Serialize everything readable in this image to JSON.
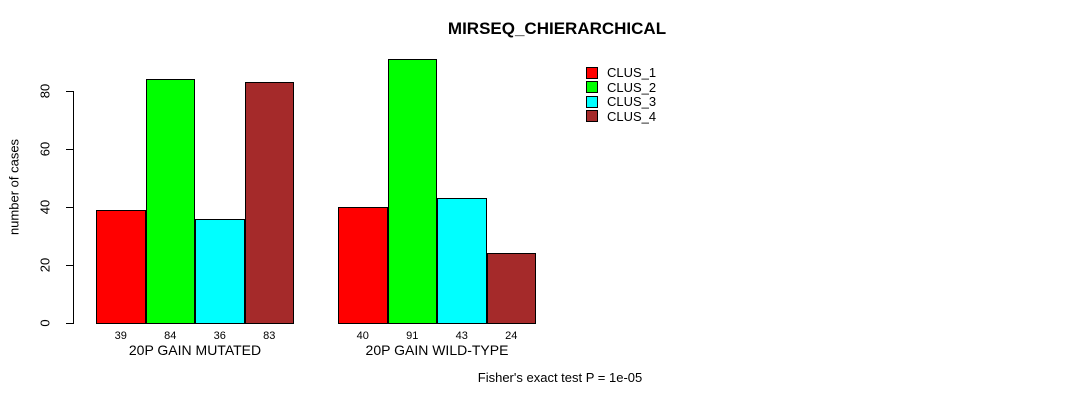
{
  "title": "MIRSEQ_CHIERARCHICAL",
  "chart_data": {
    "type": "bar",
    "title": "MIRSEQ_CHIERARCHICAL",
    "xlabel": "",
    "ylabel": "number of cases",
    "categories": [
      "20P GAIN MUTATED",
      "20P GAIN WILD-TYPE"
    ],
    "series": [
      {
        "name": "CLUS_1",
        "color": "#ff0000",
        "values": [
          39,
          40
        ]
      },
      {
        "name": "CLUS_2",
        "color": "#00ff00",
        "values": [
          84,
          91
        ]
      },
      {
        "name": "CLUS_3",
        "color": "#00ffff",
        "values": [
          36,
          43
        ]
      },
      {
        "name": "CLUS_4",
        "color": "#a52a2a",
        "values": [
          83,
          24
        ]
      }
    ],
    "bar_value_labels": [
      [
        "39",
        "84",
        "36",
        "83"
      ],
      [
        "40",
        "91",
        "43",
        "24"
      ]
    ],
    "yticks": [
      "0",
      "20",
      "40",
      "60",
      "80"
    ],
    "ylim": [
      0,
      92
    ],
    "grid": false,
    "legend_position": "top-right",
    "legend_entries": [
      "CLUS_1",
      "CLUS_2",
      "CLUS_3",
      "CLUS_4"
    ],
    "annotation": "Fisher's exact test P = 1e-05"
  }
}
